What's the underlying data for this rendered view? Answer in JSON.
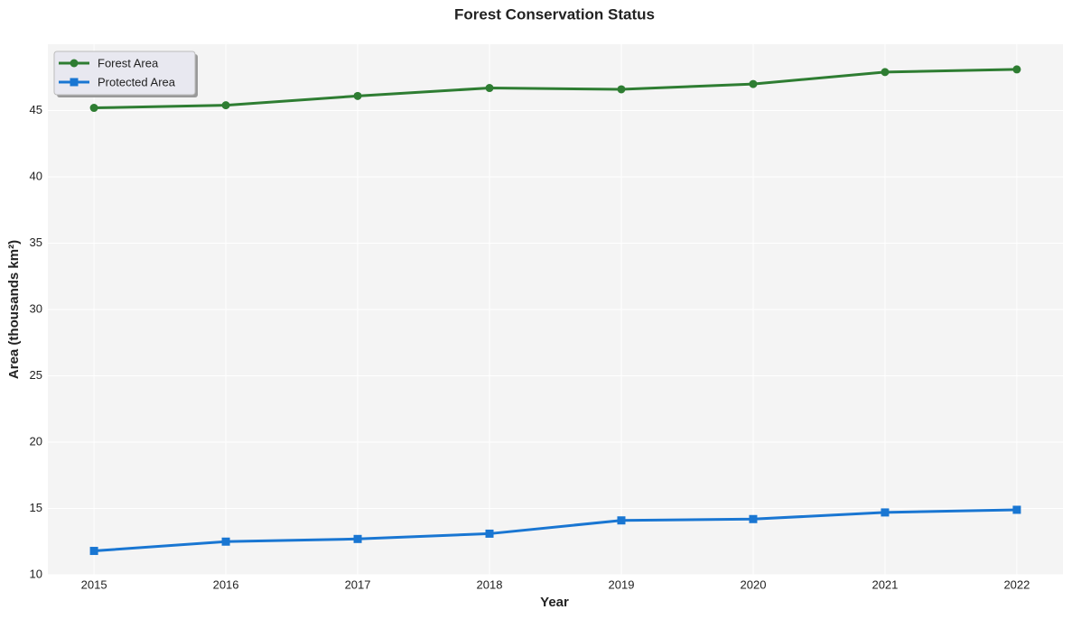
{
  "chart_data": {
    "type": "line",
    "title": "Forest Conservation Status",
    "x_label": "Year",
    "y_label": "Area (thousands km²)",
    "x": [
      2015,
      2016,
      2017,
      2018,
      2019,
      2020,
      2021,
      2022
    ],
    "xlim": [
      2014.65,
      2022.35
    ],
    "xticks": [
      2015,
      2016,
      2017,
      2018,
      2019,
      2020,
      2021,
      2022
    ],
    "ylim": [
      10,
      50
    ],
    "yticks": [
      10,
      15,
      20,
      25,
      30,
      35,
      40,
      45
    ],
    "grid": true,
    "legend": "upper-left",
    "series": [
      {
        "name": "Forest Area",
        "color": "#2e7d32",
        "marker": "circle",
        "values": [
          45.2,
          45.4,
          46.1,
          46.7,
          46.6,
          47.0,
          47.9,
          48.1
        ]
      },
      {
        "name": "Protected Area",
        "color": "#1976d2",
        "marker": "square",
        "values": [
          11.8,
          12.5,
          12.7,
          13.1,
          14.1,
          14.2,
          14.7,
          14.9
        ]
      }
    ]
  }
}
